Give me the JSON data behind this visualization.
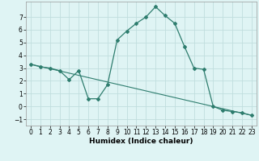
{
  "xlabel": "Humidex (Indice chaleur)",
  "curve_x": [
    0,
    1,
    2,
    3,
    4,
    5,
    6,
    7,
    8,
    9,
    10,
    11,
    12,
    13,
    14,
    15,
    16,
    17,
    18,
    19,
    20,
    21,
    22,
    23
  ],
  "curve_y": [
    3.3,
    3.1,
    3.0,
    2.8,
    2.1,
    2.8,
    0.6,
    0.6,
    1.7,
    5.2,
    5.9,
    6.5,
    7.0,
    7.8,
    7.1,
    6.5,
    4.7,
    3.0,
    2.9,
    0.0,
    -0.3,
    -0.4,
    -0.5,
    -0.7
  ],
  "line_x": [
    0,
    23
  ],
  "line_y": [
    3.3,
    -0.7
  ],
  "color": "#2e7d6e",
  "bg_color": "#dff4f4",
  "grid_color": "#c0dede",
  "yticks": [
    -1,
    0,
    1,
    2,
    3,
    4,
    5,
    6,
    7
  ],
  "xticks": [
    0,
    1,
    2,
    3,
    4,
    5,
    6,
    7,
    8,
    9,
    10,
    11,
    12,
    13,
    14,
    15,
    16,
    17,
    18,
    19,
    20,
    21,
    22,
    23
  ],
  "xlim": [
    -0.5,
    23.5
  ],
  "ylim": [
    -1.5,
    8.2
  ],
  "xlabel_fontsize": 6.5,
  "tick_fontsize": 5.5
}
